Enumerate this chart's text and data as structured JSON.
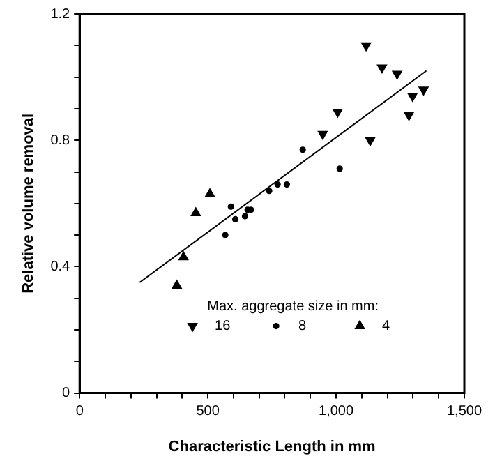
{
  "chart_data": {
    "type": "scatter",
    "xlabel": "Characteristic Length in mm",
    "ylabel": "Relative volume removal",
    "legend_title": "Max. aggregate size in mm:",
    "legend": "bottom",
    "grid": false,
    "xlim": [
      0,
      1500
    ],
    "ylim": [
      0,
      1.2
    ],
    "xticks": [
      0,
      {
        "value": 100,
        "label": null
      },
      {
        "value": 200,
        "label": null
      },
      {
        "value": 300,
        "label": null
      },
      {
        "value": 400,
        "label": null
      },
      500,
      {
        "value": 600,
        "label": null
      },
      {
        "value": 700,
        "label": null
      },
      {
        "value": 800,
        "label": null
      },
      {
        "value": 900,
        "label": null
      },
      {
        "value": 1000,
        "label": "1,000"
      },
      {
        "value": 1100,
        "label": null
      },
      {
        "value": 1200,
        "label": null
      },
      {
        "value": 1300,
        "label": null
      },
      {
        "value": 1400,
        "label": null
      },
      {
        "value": 1500,
        "label": "1,500"
      }
    ],
    "yticks": [
      0,
      {
        "value": 0.1,
        "label": null
      },
      {
        "value": 0.2,
        "label": null
      },
      {
        "value": 0.3,
        "label": null
      },
      0.4,
      {
        "value": 0.5,
        "label": null
      },
      {
        "value": 0.6,
        "label": null
      },
      {
        "value": 0.7,
        "label": null
      },
      0.8,
      {
        "value": 0.9,
        "label": null
      },
      {
        "value": 1.0,
        "label": null
      },
      {
        "value": 1.1,
        "label": null
      },
      1.2
    ],
    "series": [
      {
        "name": "16",
        "color": "#000000",
        "marker": "triangle_down",
        "x": [
          948,
          1006,
          1133,
          1117,
          1179,
          1238,
          1298,
          1284,
          1341
        ],
        "values": [
          0.82,
          0.89,
          0.8,
          1.1,
          1.03,
          1.01,
          0.94,
          0.88,
          0.96
        ]
      },
      {
        "name": "8",
        "color": "#000000",
        "marker": "circle",
        "x": [
          568,
          590,
          607,
          645,
          655,
          668,
          739,
          772,
          808,
          870,
          1014
        ],
        "values": [
          0.5,
          0.59,
          0.55,
          0.56,
          0.58,
          0.58,
          0.64,
          0.66,
          0.66,
          0.77,
          0.71
        ]
      },
      {
        "name": "4",
        "color": "#000000",
        "marker": "triangle",
        "x": [
          379,
          405,
          453,
          508
        ],
        "values": [
          0.34,
          0.43,
          0.57,
          0.63
        ]
      },
      {
        "type": "line",
        "color": "#000000",
        "marker": "none",
        "line_style": "solid",
        "x": [
          234,
          1352
        ],
        "values": [
          0.35,
          1.02
        ]
      }
    ]
  }
}
